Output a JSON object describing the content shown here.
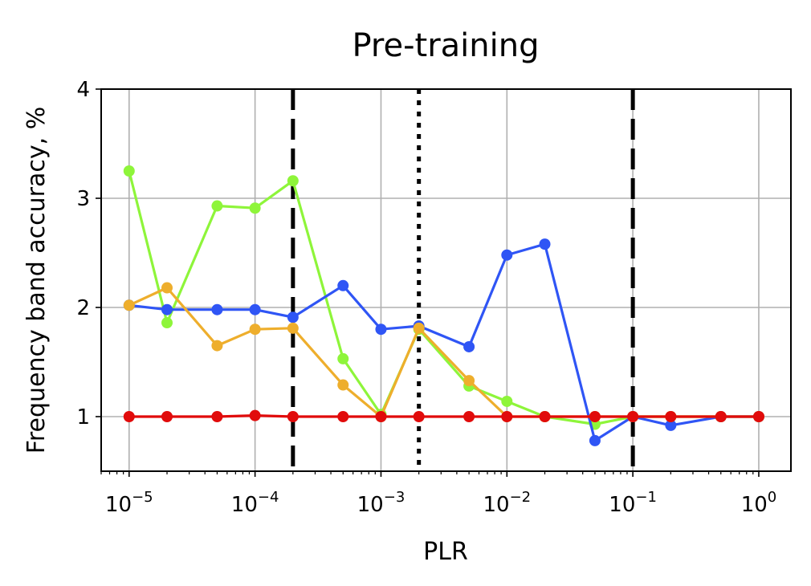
{
  "chart_data": {
    "type": "line",
    "title": "Pre-training",
    "xlabel": "PLR",
    "ylabel": "Frequency band accuracy, %",
    "xscale": "log",
    "xlim": [
      6e-06,
      1.8
    ],
    "ylim": [
      0.5,
      4
    ],
    "grid": true,
    "x": [
      1e-05,
      2e-05,
      5e-05,
      0.0001,
      0.0002,
      0.0005,
      0.001,
      0.002,
      0.005,
      0.01,
      0.02,
      0.05,
      0.1,
      0.2,
      0.5,
      1
    ],
    "x_ticks": [
      {
        "value": 1e-05,
        "base": "10",
        "exp": "−5"
      },
      {
        "value": 0.0001,
        "base": "10",
        "exp": "−4"
      },
      {
        "value": 0.001,
        "base": "10",
        "exp": "−3"
      },
      {
        "value": 0.01,
        "base": "10",
        "exp": "−2"
      },
      {
        "value": 0.1,
        "base": "10",
        "exp": "−1"
      },
      {
        "value": 1,
        "base": "10",
        "exp": "0"
      }
    ],
    "y_ticks": [
      {
        "value": 1,
        "label": "1"
      },
      {
        "value": 2,
        "label": "2"
      },
      {
        "value": 3,
        "label": "3"
      },
      {
        "value": 4,
        "label": "4"
      }
    ],
    "series": [
      {
        "color": "#8ef53a",
        "values": [
          3.25,
          1.86,
          2.93,
          2.91,
          3.16,
          1.53,
          1.02,
          1.8,
          1.28,
          1.14,
          1.0,
          0.93,
          1.0,
          1.0,
          1.0,
          1.0
        ]
      },
      {
        "color": "#2f55f5",
        "values": [
          2.02,
          1.98,
          1.98,
          1.98,
          1.91,
          2.2,
          1.8,
          1.83,
          1.64,
          2.48,
          2.58,
          0.78,
          1.0,
          0.92,
          1.0,
          1.0
        ]
      },
      {
        "color": "#eeae2c",
        "values": [
          2.02,
          2.18,
          1.65,
          1.8,
          1.81,
          1.29,
          1.0,
          1.81,
          1.33,
          1.0,
          1.0,
          1.0,
          1.0,
          1.0,
          1.0,
          1.0
        ]
      },
      {
        "color": "#e10b0b",
        "values": [
          1.0,
          1.0,
          1.0,
          1.01,
          1.0,
          1.0,
          1.0,
          1.0,
          1.0,
          1.0,
          1.0,
          1.0,
          1.0,
          1.0,
          1.0,
          1.0
        ]
      }
    ],
    "vlines": [
      {
        "x": 0.0002,
        "style": "dashed",
        "color": "#000000"
      },
      {
        "x": 0.002,
        "style": "dotted",
        "color": "#000000"
      },
      {
        "x": 0.1,
        "style": "dashed",
        "color": "#000000"
      }
    ]
  }
}
